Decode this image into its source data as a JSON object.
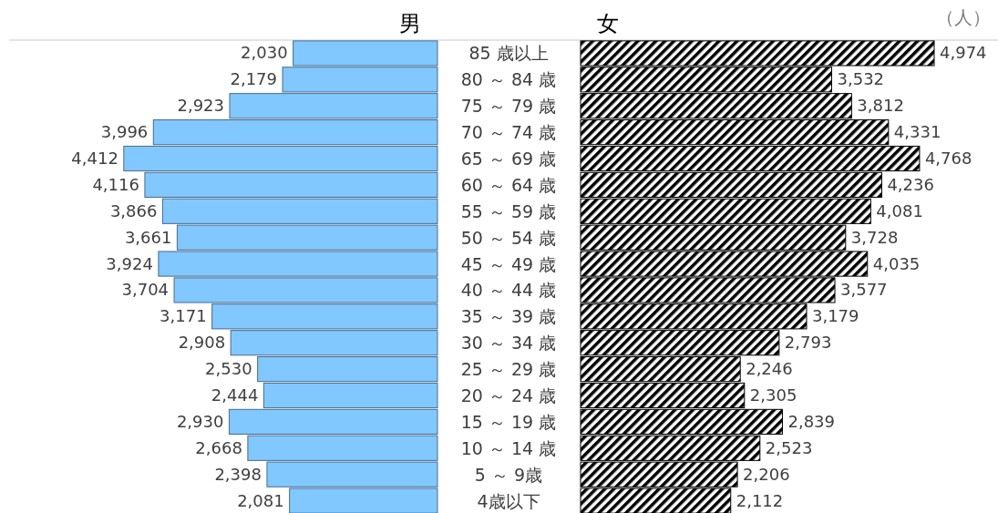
{
  "chart_data": [
    {
      "type": "bar",
      "orientation": "horizontal",
      "title": "男",
      "categories": [
        "85 歳以上",
        "80 ～ 84 歳",
        "75 ～ 79 歳",
        "70 ～ 74 歳",
        "65 ～ 69 歳",
        "60 ～ 64 歳",
        "55 ～ 59 歳",
        "50 ～ 54 歳",
        "45 ～ 49 歳",
        "40 ～ 44 歳",
        "35 ～ 39 歳",
        "30 ～ 34 歳",
        "25 ～ 29 歳",
        "20 ～ 24 歳",
        "15 ～ 19 歳",
        "10 ～ 14 歳",
        "5 ～ 9歳",
        "4歳以下"
      ],
      "series": [
        {
          "color": "#80c8ff",
          "values": [
            2030,
            2179,
            2923,
            3996,
            4412,
            4116,
            3866,
            3661,
            3924,
            3704,
            3171,
            2908,
            2530,
            2444,
            2930,
            2668,
            2398,
            2081
          ],
          "value_labels": [
            "2,030",
            "2,179",
            "2,923",
            "3,996",
            "4,412",
            "4,116",
            "3,866",
            "3,661",
            "3,924",
            "3,704",
            "3,171",
            "2,908",
            "2,530",
            "2,444",
            "2,930",
            "2,668",
            "2,398",
            "2,081"
          ]
        }
      ],
      "tick_labels": "y"
    },
    {
      "type": "bar",
      "orientation": "horizontal",
      "title": "女",
      "series": [
        {
          "color": "#000000",
          "values": [
            4974,
            3532,
            3812,
            4331,
            4768,
            4236,
            4081,
            3728,
            4035,
            3577,
            3179,
            2793,
            2246,
            2305,
            2839,
            2523,
            2206,
            2112
          ],
          "value_labels": [
            "4,974",
            "3,532",
            "3,812",
            "4,331",
            "4,768",
            "4,236",
            "4,081",
            "3,728",
            "4,035",
            "3,577",
            "3,179",
            "2,793",
            "2,246",
            "2,305",
            "2,839",
            "2,523",
            "2,206",
            "2,112"
          ]
        }
      ],
      "tick_labels": false,
      "annotations": [
        "（人）"
      ]
    }
  ]
}
